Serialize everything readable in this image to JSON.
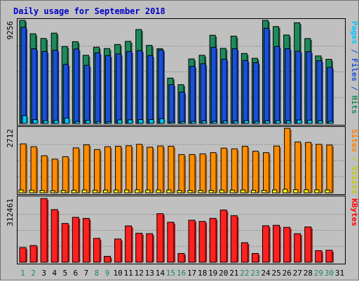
{
  "chart_data": {
    "type": "bar",
    "title": "Daily usage for September 2018",
    "categories": [
      "1",
      "2",
      "3",
      "4",
      "5",
      "6",
      "7",
      "8",
      "9",
      "10",
      "11",
      "12",
      "13",
      "14",
      "15",
      "16",
      "17",
      "18",
      "19",
      "20",
      "21",
      "22",
      "23",
      "24",
      "25",
      "26",
      "27",
      "28",
      "29",
      "30",
      "31"
    ],
    "weekend_days": [
      "1",
      "2",
      "8",
      "9",
      "15",
      "16",
      "22",
      "23",
      "29",
      "30"
    ],
    "panels": [
      {
        "id": "hits",
        "max_label": "9256",
        "ymax": 9256,
        "side_labels": [
          {
            "text": "Pages",
            "color": "#00c8ff"
          },
          {
            "text": " / ",
            "color": "#1c4fd8"
          },
          {
            "text": "Files",
            "color": "#1c4fd8"
          },
          {
            "text": " / ",
            "color": "#1c4fd8"
          },
          {
            "text": "Hits",
            "color": "#1e8a5a"
          }
        ],
        "series": [
          {
            "name": "Hits",
            "color": "#1e8a5a",
            "values": [
              9256,
              8050,
              7630,
              8110,
              6910,
              7340,
              6120,
              6850,
              6720,
              7090,
              7370,
              8430,
              7010,
              6710,
              4070,
              3480,
              5790,
              6120,
              7920,
              6740,
              7840,
              6280,
              5850,
              9256,
              8700,
              7940,
              9040,
              7620,
              6060,
              5760,
              null
            ]
          },
          {
            "name": "Files",
            "color": "#1c4fd8",
            "values": [
              8630,
              6700,
              6460,
              6570,
              5300,
              6680,
              5220,
              6330,
              6090,
              6240,
              6460,
              6540,
              6090,
              6590,
              3480,
              2820,
              5130,
              5360,
              6840,
              5770,
              6710,
              5650,
              5460,
              8540,
              6910,
              6710,
              6480,
              6440,
              5630,
              5040,
              null
            ]
          },
          {
            "name": "Pages",
            "color": "#00c8ff",
            "values": [
              700,
              340,
              260,
              280,
              490,
              180,
              280,
              170,
              150,
              310,
              320,
              350,
              350,
              420,
              130,
              170,
              180,
              220,
              180,
              210,
              210,
              260,
              180,
              230,
              250,
              240,
              310,
              290,
              240,
              180,
              null
            ]
          }
        ]
      },
      {
        "id": "visits",
        "max_label": "2712",
        "ymax": 2712,
        "side_labels": [
          {
            "text": "Sites",
            "color": "#ff7f00"
          },
          {
            "text": " / ",
            "color": "#c8c800"
          },
          {
            "text": "Visits",
            "color": "#c8c800"
          }
        ],
        "series": [
          {
            "name": "Visits",
            "color": "#ff8c00",
            "values": [
              2060,
              1940,
              1560,
              1420,
              1520,
              1890,
              2020,
              1820,
              1940,
              1960,
              1980,
              2040,
              1920,
              1970,
              1960,
              1610,
              1610,
              1640,
              1690,
              1880,
              1850,
              1960,
              1750,
              1690,
              1970,
              2712,
              2140,
              2120,
              2040,
              2010,
              null
            ]
          },
          {
            "name": "Sites",
            "color": "#ffff00",
            "values": [
              120,
              110,
              100,
              90,
              100,
              110,
              120,
              110,
              115,
              118,
              120,
              125,
              118,
              122,
              119,
              100,
              100,
              102,
              105,
              115,
              113,
              120,
              108,
              105,
              122,
              150,
              130,
              128,
              125,
              122,
              null
            ]
          }
        ]
      },
      {
        "id": "kbytes",
        "max_label": "312461",
        "ymax": 312461,
        "side_labels": [
          {
            "text": "KBytes",
            "color": "#ff0000"
          }
        ],
        "series": [
          {
            "name": "KBytes",
            "color": "#ff2020",
            "values": [
              72000,
              82000,
              312461,
              258000,
              190000,
              220000,
              215000,
              117000,
              29000,
              114000,
              178000,
              142000,
              140000,
              238000,
              196000,
              43000,
              206000,
              200000,
              215000,
              256000,
              228000,
              96000,
              43000,
              179000,
              181000,
              171000,
              140000,
              173000,
              57000,
              59000,
              null
            ]
          }
        ]
      }
    ],
    "colors": {
      "background": "#c0c0c0",
      "title": "#0000c8",
      "weekday_label": "#000000",
      "weekend_label": "#1e8a5a"
    }
  }
}
